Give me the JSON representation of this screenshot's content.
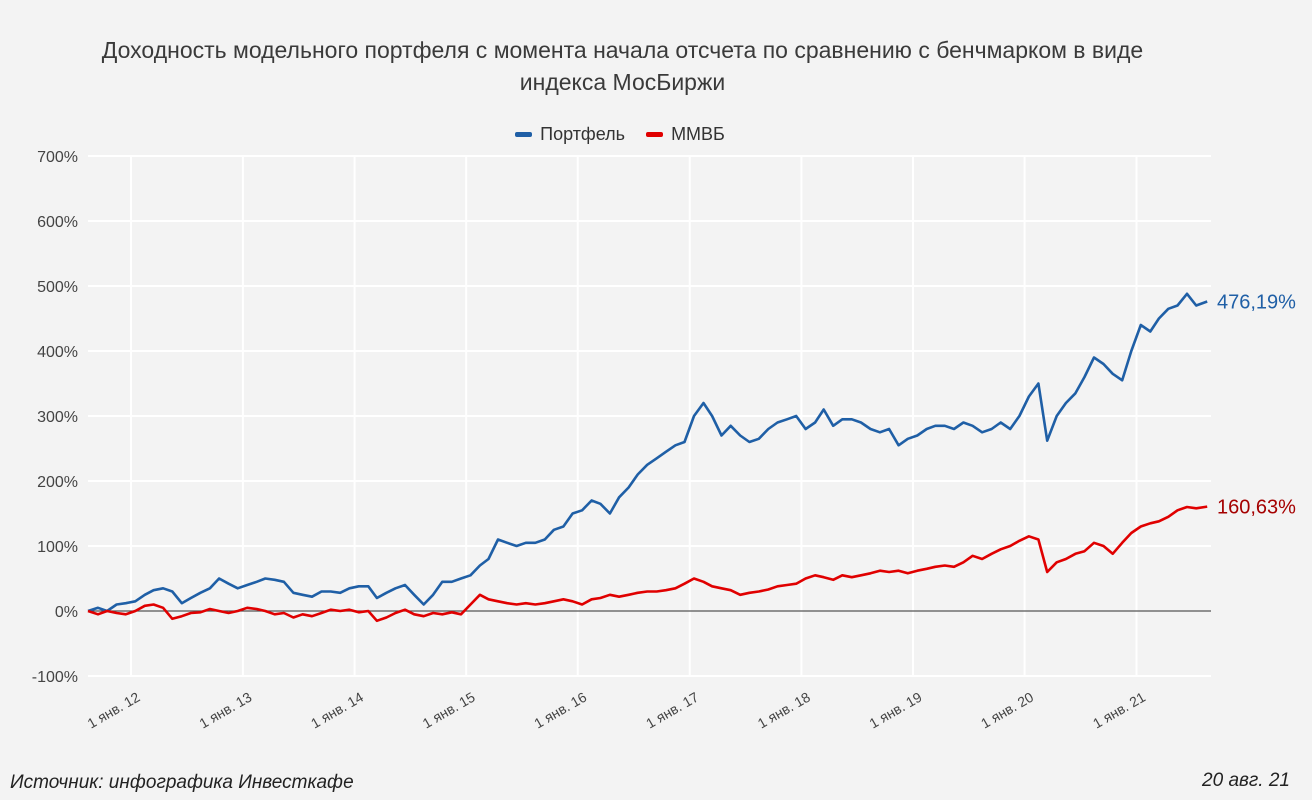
{
  "chart_data": {
    "type": "line",
    "title": "Доходность модельного портфеля с момента начала отсчета по сравнению с бенчмарком в виде индекса МосБиржи",
    "title_lines": [
      "Доходность модельного портфеля с момента начала отсчета по сравнению с бенчмарком в виде",
      "индекса МосБиржи"
    ],
    "ylim": [
      -100,
      700
    ],
    "y_ticks": [
      -100,
      0,
      100,
      200,
      300,
      400,
      500,
      600,
      700
    ],
    "y_tick_labels": [
      "-100%",
      "0%",
      "100%",
      "200%",
      "300%",
      "400%",
      "500%",
      "600%",
      "700%"
    ],
    "x_ticks": [
      "2012-01-01",
      "2013-01-01",
      "2014-01-01",
      "2015-01-01",
      "2016-01-01",
      "2017-01-01",
      "2018-01-01",
      "2019-01-01",
      "2020-01-01",
      "2021-01-01"
    ],
    "x_tick_labels": [
      "1 янв. 12",
      "1 янв. 13",
      "1 янв. 14",
      "1 янв. 15",
      "1 янв. 16",
      "1 янв. 17",
      "1 янв. 18",
      "1 янв. 19",
      "1 янв. 20",
      "1 янв. 21"
    ],
    "xlim": [
      "2011-08-01",
      "2021-08-20"
    ],
    "grid": true,
    "legend_placement": "top",
    "start": "2011-08",
    "series": [
      {
        "name": "Портфель",
        "color": "#1f5fa6",
        "end_label": "476,19%",
        "values": [
          0,
          5,
          0,
          10,
          12,
          15,
          25,
          32,
          35,
          30,
          12,
          20,
          28,
          35,
          50,
          42,
          35,
          40,
          45,
          50,
          48,
          45,
          28,
          25,
          22,
          30,
          30,
          28,
          35,
          38,
          38,
          20,
          28,
          35,
          40,
          25,
          10,
          25,
          45,
          45,
          50,
          55,
          70,
          80,
          110,
          105,
          100,
          105,
          105,
          110,
          125,
          130,
          150,
          155,
          170,
          165,
          150,
          175,
          190,
          210,
          225,
          235,
          245,
          255,
          260,
          300,
          320,
          300,
          270,
          285,
          270,
          260,
          265,
          280,
          290,
          295,
          300,
          280,
          290,
          310,
          285,
          295,
          295,
          290,
          280,
          275,
          280,
          255,
          265,
          270,
          280,
          285,
          285,
          280,
          290,
          285,
          275,
          280,
          290,
          280,
          300,
          330,
          350,
          262,
          300,
          320,
          335,
          360,
          390,
          380,
          365,
          355,
          400,
          440,
          430,
          450,
          465,
          470,
          488,
          470,
          476.19
        ]
      },
      {
        "name": "ММВБ",
        "color": "#e00000",
        "label_color": "#a50000",
        "end_label": "160,63%",
        "values": [
          0,
          -5,
          0,
          -3,
          -5,
          0,
          8,
          10,
          5,
          -12,
          -8,
          -3,
          -2,
          3,
          0,
          -3,
          0,
          5,
          3,
          0,
          -5,
          -3,
          -10,
          -5,
          -8,
          -3,
          2,
          0,
          2,
          -2,
          0,
          -15,
          -10,
          -3,
          2,
          -5,
          -8,
          -3,
          -5,
          -2,
          -5,
          10,
          25,
          18,
          15,
          12,
          10,
          12,
          10,
          12,
          15,
          18,
          15,
          10,
          18,
          20,
          25,
          22,
          25,
          28,
          30,
          30,
          32,
          35,
          42,
          50,
          45,
          38,
          35,
          32,
          25,
          28,
          30,
          33,
          38,
          40,
          42,
          50,
          55,
          52,
          48,
          55,
          52,
          55,
          58,
          62,
          60,
          62,
          58,
          62,
          65,
          68,
          70,
          68,
          75,
          85,
          80,
          88,
          95,
          100,
          108,
          115,
          110,
          60,
          75,
          80,
          88,
          92,
          105,
          100,
          88,
          105,
          120,
          130,
          135,
          138,
          145,
          155,
          160,
          158,
          160.63
        ]
      }
    ]
  },
  "footer": {
    "source": "Источник: инфографика Инвесткафе",
    "date": "20 авг. 21"
  }
}
